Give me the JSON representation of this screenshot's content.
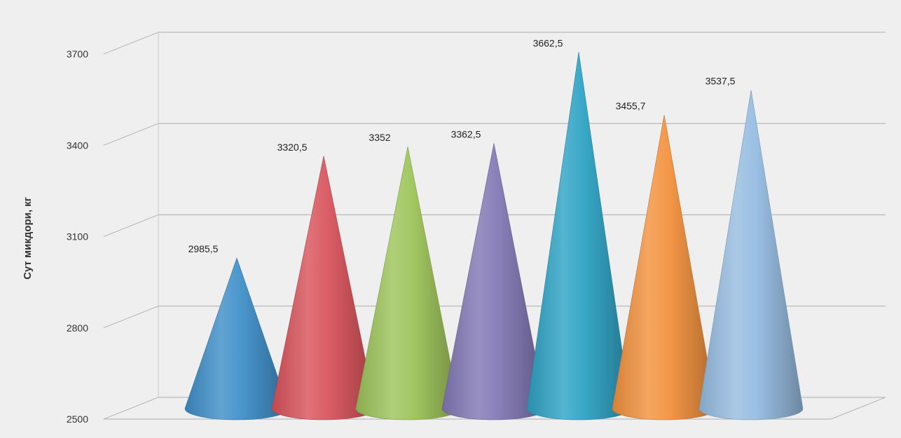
{
  "chart_data": {
    "type": "bar",
    "style": "3d-cone",
    "title": "",
    "xlabel": "",
    "ylabel": "Сут микдори, кг",
    "ylim": [
      2500,
      3700
    ],
    "yticks": [
      2500,
      2800,
      3100,
      3400,
      3700
    ],
    "ytick_labels": [
      "2500",
      "2800",
      "3100",
      "3400",
      "3700"
    ],
    "grid": true,
    "legend": "none",
    "values": [
      2985.5,
      3320.5,
      3352,
      3362.5,
      3662.5,
      3455.7,
      3537.5
    ],
    "value_labels": [
      "2985,5",
      "3320,5",
      "3352",
      "3362,5",
      "3662,5",
      "3455,7",
      "3537,5"
    ],
    "colors": [
      "#3f8fc9",
      "#d9535c",
      "#9ec45a",
      "#8378b5",
      "#2fa3c4",
      "#f3923e",
      "#96bde1"
    ]
  }
}
